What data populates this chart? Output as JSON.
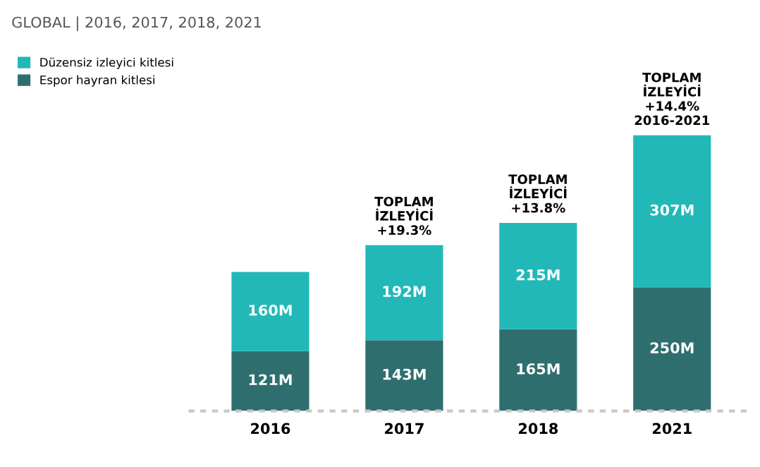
{
  "chart_data": {
    "type": "bar",
    "title": "GLOBAL | 2016, 2017, 2018, 2021",
    "stacked": true,
    "legend": "top left",
    "categories": [
      "2016",
      "2017",
      "2018",
      "2021"
    ],
    "series": [
      {
        "name": "Espor hayran kitlesi",
        "color": "#2f6e6e",
        "values": [
          121,
          143,
          165,
          250
        ],
        "value_labels": [
          "121M",
          "143M",
          "165M",
          "250M"
        ]
      },
      {
        "name": "Düzensiz izleyici kitlesi",
        "color": "#22b8b8",
        "values": [
          160,
          192,
          215,
          307
        ],
        "value_labels": [
          "160M",
          "192M",
          "215M",
          "307M"
        ]
      }
    ],
    "annotations": [
      {
        "text": "TOPLAM\nİZLEYİCİ\n+19.3%",
        "x": "2017",
        "y": 335
      },
      {
        "text": "TOPLAM\nİZLEYİCİ\n+13.8%",
        "x": "2018",
        "y": 380
      },
      {
        "text": "TOPLAM\nİZLEYİCİ\n+14.4%\n2016-2021",
        "x": "2021",
        "y": 557
      }
    ]
  }
}
